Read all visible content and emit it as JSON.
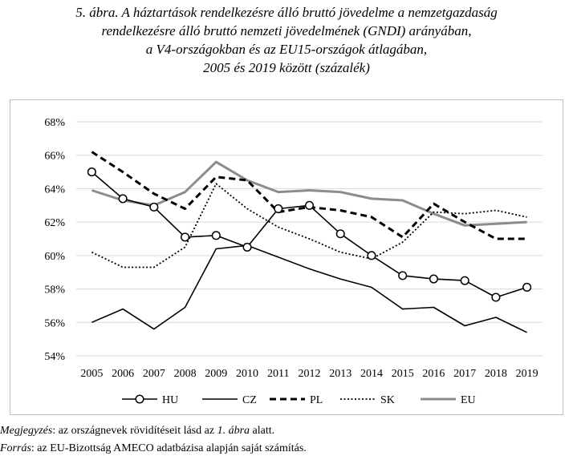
{
  "figure": {
    "title_lines": [
      "5. ábra. A háztartások rendelkezésre álló bruttó jövedelme a nemzetgazdaság",
      "rendelkezésre álló bruttó nemzeti jövedelmének (GNDI) arányában,",
      "a V4-országokban és az EU15-országok átlagában,",
      "2005 és 2019 között (százalék)"
    ],
    "note": {
      "label": "Megjegyzés",
      "sep": ": ",
      "text_before": "az országnevek rövidítéseit lásd az ",
      "text_em": "1. ábra",
      "text_after": " alatt."
    },
    "source": {
      "label": "Forrás",
      "sep": ": ",
      "text": "az EU-Bizottság AMECO adatbázisa alapján saját számítás."
    }
  },
  "chart_data": {
    "type": "line",
    "title": "",
    "xlabel": "",
    "ylabel": "",
    "x": [
      "2005",
      "2006",
      "2007",
      "2008",
      "2009",
      "2010",
      "2011",
      "2012",
      "2013",
      "2014",
      "2015",
      "2016",
      "2017",
      "2018",
      "2019"
    ],
    "ylim": [
      54,
      68
    ],
    "yticks": [
      54,
      56,
      58,
      60,
      62,
      64,
      66,
      68
    ],
    "ytick_labels": [
      "54%",
      "56%",
      "58%",
      "60%",
      "62%",
      "64%",
      "66%",
      "68%"
    ],
    "grid": "horizontal",
    "legend_position": "bottom",
    "series": [
      {
        "name": "HU",
        "style": "solid-circle-markers",
        "color": "#000000",
        "values": [
          65.0,
          63.4,
          62.9,
          61.1,
          61.2,
          60.5,
          62.8,
          63.0,
          61.3,
          60.0,
          58.8,
          58.6,
          58.5,
          57.5,
          58.1
        ]
      },
      {
        "name": "CZ",
        "style": "solid",
        "color": "#000000",
        "values": [
          56.0,
          56.8,
          55.6,
          56.9,
          60.4,
          60.6,
          59.9,
          59.2,
          58.6,
          58.1,
          56.8,
          56.9,
          55.8,
          56.3,
          55.4
        ]
      },
      {
        "name": "PL",
        "style": "dashed",
        "color": "#000000",
        "values": [
          66.2,
          65.0,
          63.7,
          62.8,
          64.7,
          64.5,
          62.6,
          62.9,
          62.7,
          62.3,
          61.1,
          63.1,
          62.0,
          61.0,
          61.0
        ]
      },
      {
        "name": "SK",
        "style": "dotted",
        "color": "#000000",
        "values": [
          60.2,
          59.3,
          59.3,
          60.5,
          64.3,
          62.8,
          61.7,
          61.0,
          60.2,
          59.8,
          60.8,
          62.6,
          62.5,
          62.7,
          62.3
        ]
      },
      {
        "name": "EU",
        "style": "solid-thick",
        "color": "#8c8c8c",
        "values": [
          63.9,
          63.3,
          63.0,
          63.8,
          65.6,
          64.5,
          63.8,
          63.9,
          63.8,
          63.4,
          63.3,
          62.5,
          61.8,
          61.9,
          62.0
        ]
      }
    ]
  }
}
